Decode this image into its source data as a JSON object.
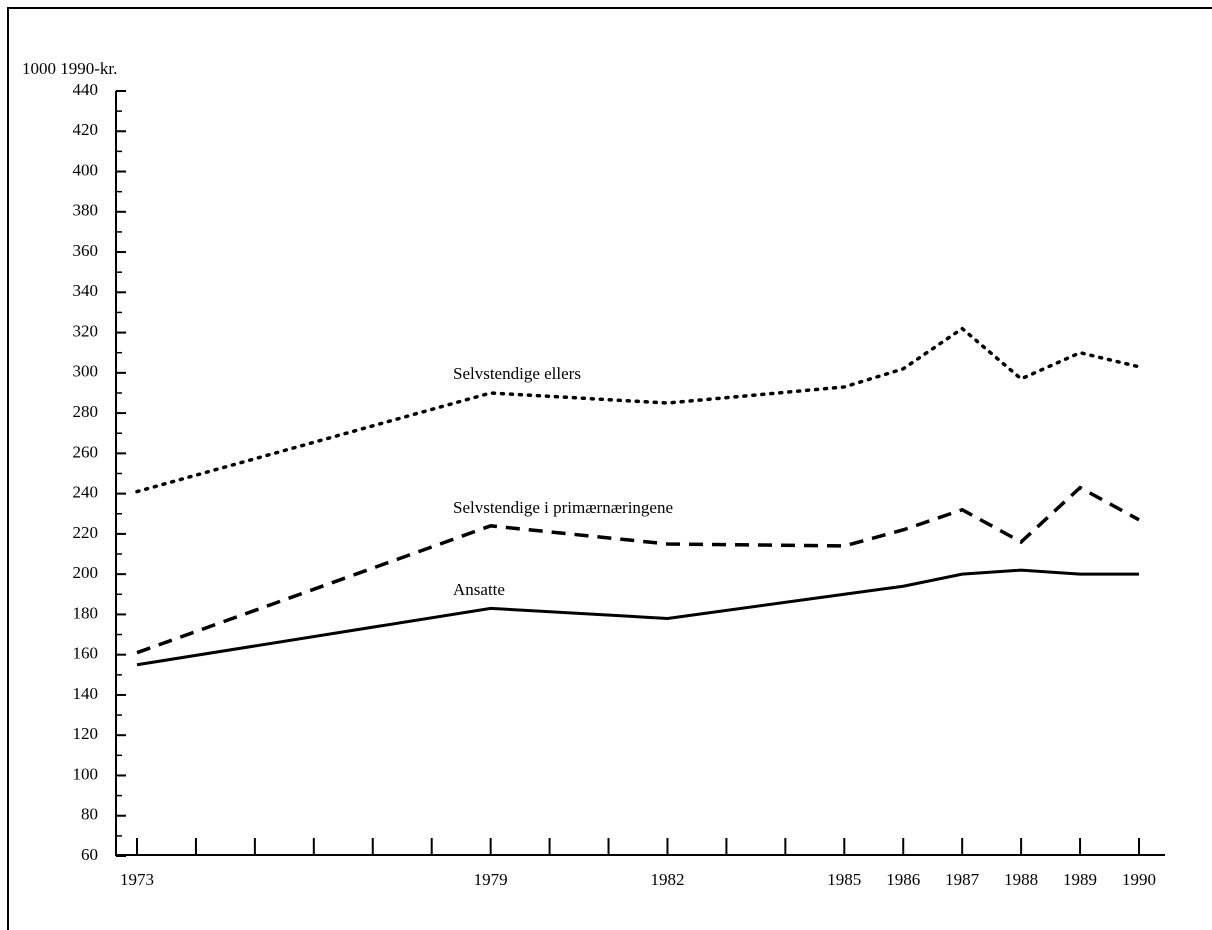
{
  "chart_data": {
    "type": "line",
    "y_label": "1000 1990-kr.",
    "x": [
      1973,
      1979,
      1982,
      1985,
      1986,
      1987,
      1988,
      1989,
      1990
    ],
    "series": [
      {
        "name": "Selvstendige ellers",
        "color": "#000000",
        "dash": "dotted",
        "values": [
          241,
          290,
          285,
          293,
          302,
          322,
          297,
          310,
          303
        ]
      },
      {
        "name": "Selvstendige i primærnæringene",
        "color": "#000000",
        "dash": "dashed",
        "values": [
          161,
          224,
          215,
          214,
          222,
          232,
          216,
          243,
          227
        ]
      },
      {
        "name": "Ansatte",
        "color": "#000000",
        "dash": "solid",
        "values": [
          155,
          183,
          178,
          190,
          194,
          200,
          202,
          200,
          200
        ]
      }
    ],
    "xlim": [
      1973,
      1990
    ],
    "xticks": [
      1973,
      1979,
      1982,
      1985,
      1986,
      1987,
      1988,
      1989,
      1990
    ],
    "xticks_minor": [
      1974,
      1975,
      1976,
      1977,
      1978,
      1980,
      1981,
      1983,
      1984
    ],
    "ylim": [
      60,
      440
    ],
    "yticks": [
      60,
      80,
      100,
      120,
      140,
      160,
      180,
      200,
      220,
      240,
      260,
      280,
      300,
      320,
      340,
      360,
      380,
      400,
      420,
      440
    ],
    "yticks_minor": [
      70,
      90,
      110,
      130,
      150,
      170,
      190,
      210,
      230,
      250,
      270,
      290,
      310,
      330,
      350,
      370,
      390,
      410,
      430
    ],
    "grid": false
  }
}
